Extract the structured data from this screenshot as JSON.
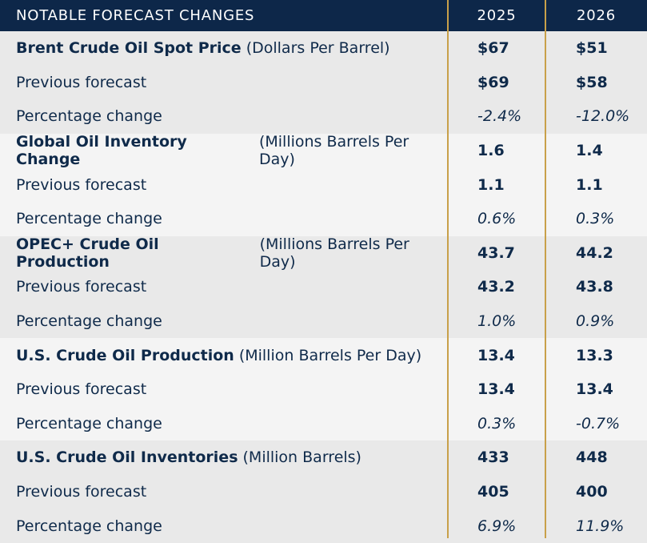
{
  "header": {
    "title": "NOTABLE FORECAST CHANGES",
    "col1": "2025",
    "col2": "2026"
  },
  "groups": [
    {
      "name": "Brent Crude Oil Spot Price",
      "unit": "(Dollars Per Barrel)",
      "current": [
        "$67",
        "$51"
      ],
      "prev_label": "Previous forecast",
      "previous": [
        "$69",
        "$58"
      ],
      "pct_label": "Percentage change",
      "pct": [
        "-2.4%",
        "-12.0%"
      ]
    },
    {
      "name": "Global Oil Inventory Change",
      "unit": "(Millions Barrels Per Day)",
      "current": [
        "1.6",
        "1.4"
      ],
      "prev_label": "Previous forecast",
      "previous": [
        "1.1",
        "1.1"
      ],
      "pct_label": "Percentage change",
      "pct": [
        "0.6%",
        "0.3%"
      ]
    },
    {
      "name": "OPEC+ Crude Oil Production",
      "unit": "(Millions Barrels Per Day)",
      "current": [
        "43.7",
        "44.2"
      ],
      "prev_label": "Previous forecast",
      "previous": [
        "43.2",
        "43.8"
      ],
      "pct_label": "Percentage change",
      "pct": [
        "1.0%",
        "0.9%"
      ]
    },
    {
      "name": "U.S. Crude Oil Production",
      "unit": "(Million Barrels Per Day)",
      "current": [
        "13.4",
        "13.3"
      ],
      "prev_label": "Previous forecast",
      "previous": [
        "13.4",
        "13.4"
      ],
      "pct_label": "Percentage change",
      "pct": [
        "0.3%",
        "-0.7%"
      ]
    },
    {
      "name": "U.S. Crude Oil Inventories",
      "unit": "(Million Barrels)",
      "current": [
        "433",
        "448"
      ],
      "prev_label": "Previous forecast",
      "previous": [
        "405",
        "400"
      ],
      "pct_label": "Percentage change",
      "pct": [
        "6.9%",
        "11.9%"
      ]
    }
  ],
  "colors": {
    "header_bg": "#0d2749",
    "text": "#0f2a4a",
    "row_dark": "#e9e9e9",
    "row_light": "#f4f4f4",
    "divider": "#c8a04a"
  }
}
